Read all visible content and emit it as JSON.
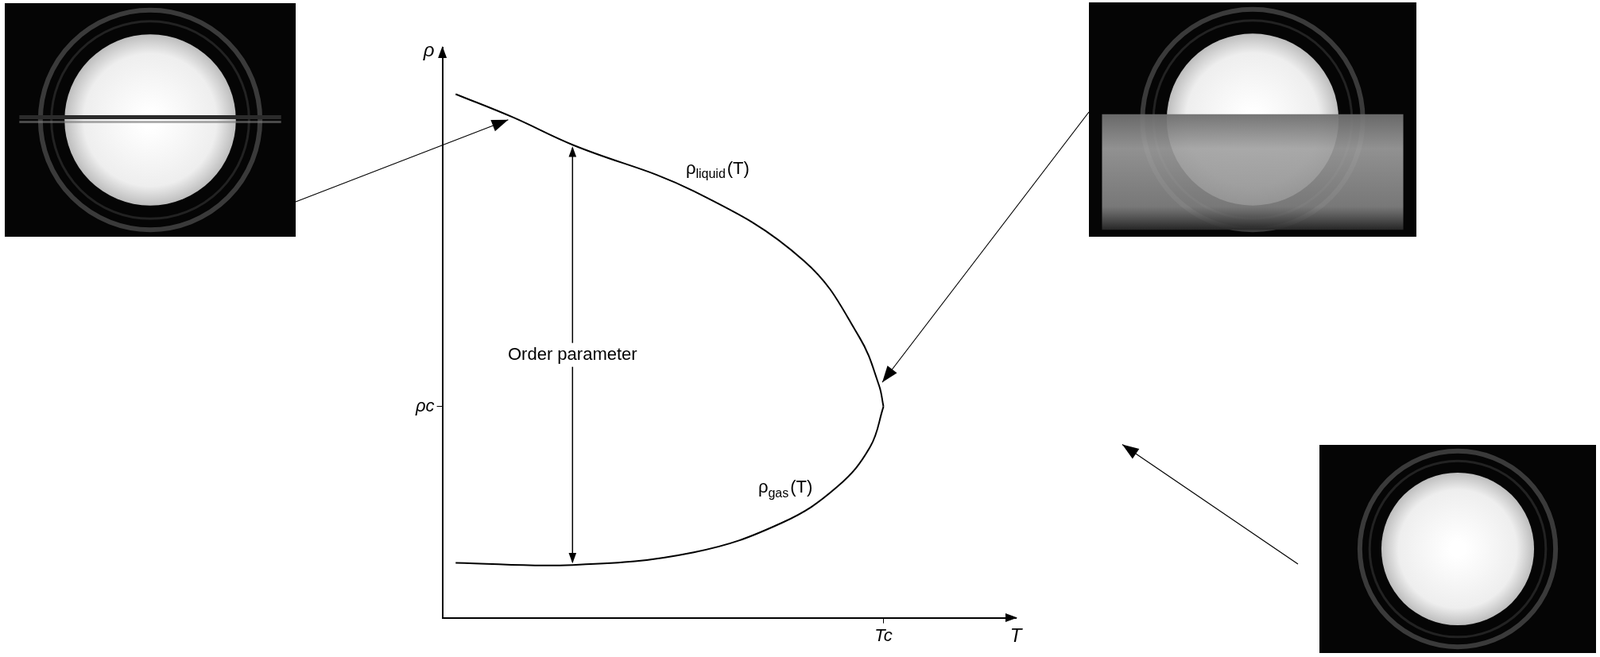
{
  "chart_data": {
    "type": "line",
    "xlabel": "T",
    "ylabel": "ρ",
    "xlim": [
      0,
      1.3
    ],
    "ylim": [
      0,
      2.7
    ],
    "xticks": [
      {
        "value": 1,
        "label": "Tc"
      }
    ],
    "yticks": [
      {
        "value": 1,
        "label": "ρc"
      }
    ],
    "grid": false,
    "series": [
      {
        "name": "ρliquid(T)",
        "color": "#000000",
        "x": [
          0.03,
          0.16,
          0.295,
          0.57,
          0.82,
          0.945,
          0.99,
          1.0
        ],
        "values": [
          2.48,
          2.37,
          2.24,
          2.02,
          1.69,
          1.33,
          1.1,
          1.0
        ]
      },
      {
        "name": "ρgas(T)",
        "color": "#000000",
        "x": [
          0.03,
          0.295,
          0.57,
          0.77,
          0.895,
          0.97,
          1.0
        ],
        "values": [
          0.26,
          0.25,
          0.31,
          0.45,
          0.62,
          0.81,
          1.0
        ]
      }
    ],
    "annotations": [
      {
        "text": "Order parameter",
        "x": 0.295
      }
    ]
  }
}
